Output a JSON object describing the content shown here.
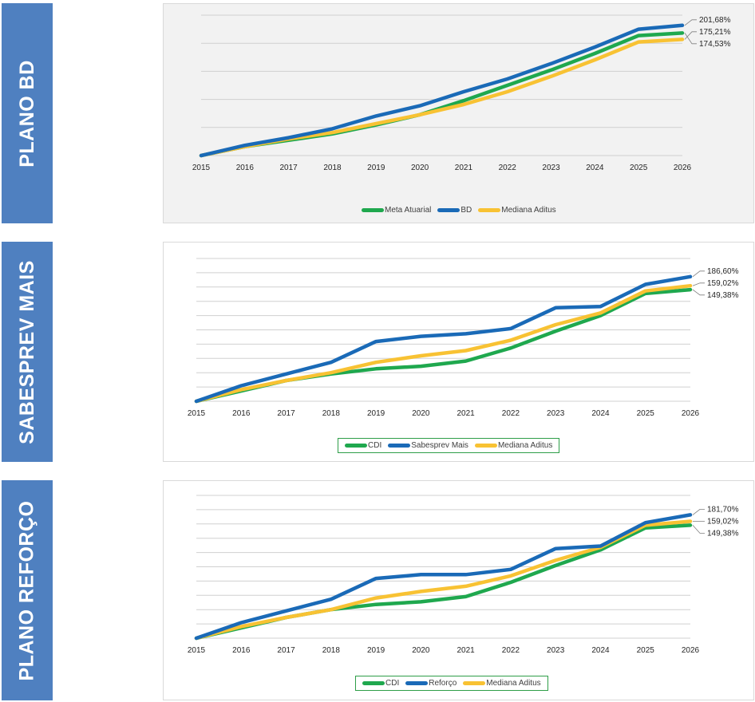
{
  "panels": [
    {
      "side_label": "PLANO BD",
      "legend": [
        "Meta Atuarial",
        "BD",
        "Mediana Aditus"
      ],
      "end_labels": [
        "201,68%",
        "175,21%",
        "174,53%"
      ]
    },
    {
      "side_label": "SABESPREV MAIS",
      "legend": [
        "CDI",
        "Sabesprev Mais",
        "Mediana Aditus"
      ],
      "end_labels": [
        "186,60%",
        "159,02%",
        "149,38%"
      ]
    },
    {
      "side_label": "PLANO REFORÇO",
      "legend": [
        "CDI",
        "Reforço",
        "Mediana Aditus"
      ],
      "end_labels": [
        "181,70%",
        "159,02%",
        "149,38%"
      ]
    }
  ],
  "colors": {
    "green": "#1fa84e",
    "blue": "#1a6ab7",
    "yellow": "#f8c233",
    "side_label_bg": "#4f80c0"
  },
  "chart_data": [
    {
      "type": "line",
      "title": "PLANO BD",
      "x": [
        "2015",
        "2016",
        "2017",
        "2018",
        "2019",
        "2020",
        "2021",
        "2022",
        "2023",
        "2024",
        "2025",
        "2026"
      ],
      "ylim": [
        100,
        210
      ],
      "grid": true,
      "legend_position": "bottom",
      "series": [
        {
          "name": "Meta Atuarial",
          "color": "#1fa84e",
          "values": [
            100,
            107,
            112,
            117,
            124,
            132,
            143,
            155,
            167,
            180,
            194,
            196
          ]
        },
        {
          "name": "BD",
          "color": "#1a6ab7",
          "values": [
            100,
            108,
            114,
            121,
            131,
            139,
            150,
            160,
            172,
            185,
            199,
            202
          ]
        },
        {
          "name": "Mediana Aditus",
          "color": "#f8c233",
          "values": [
            100,
            107,
            113,
            118,
            125,
            132,
            140,
            150,
            162,
            175,
            189,
            191
          ]
        }
      ]
    },
    {
      "type": "line",
      "title": "SABESPREV MAIS",
      "x": [
        "2015",
        "2016",
        "2017",
        "2018",
        "2019",
        "2020",
        "2021",
        "2022",
        "2023",
        "2024",
        "2025",
        "2026"
      ],
      "ylim": [
        100,
        210
      ],
      "grid": true,
      "legend_position": "bottom",
      "series": [
        {
          "name": "CDI",
          "color": "#1fa84e",
          "values": [
            100,
            108,
            116,
            121,
            125,
            127,
            131,
            141,
            154,
            166,
            183,
            186
          ]
        },
        {
          "name": "Sabesprev Mais",
          "color": "#1a6ab7",
          "values": [
            100,
            112,
            121,
            130,
            146,
            150,
            152,
            156,
            172,
            173,
            190,
            196
          ]
        },
        {
          "name": "Mediana Aditus",
          "color": "#f8c233",
          "values": [
            100,
            109,
            116,
            122,
            130,
            135,
            139,
            147,
            159,
            168,
            185,
            189
          ]
        }
      ]
    },
    {
      "type": "line",
      "title": "PLANO REFORÇO",
      "x": [
        "2015",
        "2016",
        "2017",
        "2018",
        "2019",
        "2020",
        "2021",
        "2022",
        "2023",
        "2024",
        "2025",
        "2026"
      ],
      "ylim": [
        100,
        210
      ],
      "grid": true,
      "legend_position": "bottom",
      "series": [
        {
          "name": "CDI",
          "color": "#1fa84e",
          "values": [
            100,
            108,
            116,
            122,
            126,
            128,
            132,
            143,
            156,
            168,
            185,
            187
          ]
        },
        {
          "name": "Reforço",
          "color": "#1a6ab7",
          "values": [
            100,
            112,
            121,
            130,
            146,
            149,
            149,
            153,
            169,
            171,
            189,
            195
          ]
        },
        {
          "name": "Mediana Aditus",
          "color": "#f8c233",
          "values": [
            100,
            109,
            116,
            122,
            131,
            136,
            140,
            148,
            160,
            170,
            187,
            190
          ]
        }
      ]
    }
  ]
}
